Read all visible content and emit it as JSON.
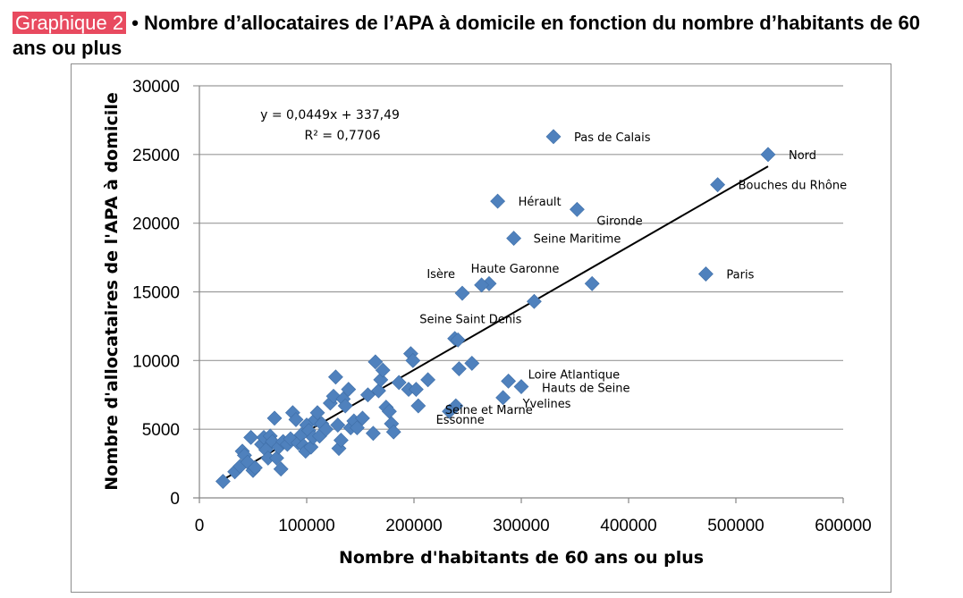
{
  "heading": {
    "tag": "Graphique 2",
    "title": " • Nombre d’allocataires de l’APA à domicile en fonction du nombre d’habitants de 60 ans ou plus"
  },
  "chart_data": {
    "type": "scatter",
    "xlabel": "Nombre d'habitants de 60 ans ou plus",
    "ylabel": "Nombre d'allocataires de l'APA à domicile",
    "xlim": [
      0,
      600000
    ],
    "ylim": [
      0,
      30000
    ],
    "x_ticks": [
      "0",
      "100000",
      "200000",
      "300000",
      "400000",
      "500000",
      "600000"
    ],
    "y_ticks": [
      "0",
      "5000",
      "10000",
      "15000",
      "20000",
      "25000",
      "30000"
    ],
    "grid": "horizontal",
    "marker_color": "#4f81bd",
    "trendline": {
      "slope": 0.0449,
      "intercept": 337.49,
      "x_range": [
        22000,
        530000
      ],
      "equation": "y = 0,0449x + 337,49",
      "r2": "R² = 0,7706"
    },
    "labeled_points": [
      {
        "name": "Nord",
        "x": 530000,
        "y": 25000
      },
      {
        "name": "Pas de Calais",
        "x": 330000,
        "y": 26300
      },
      {
        "name": "Bouches du Rhône",
        "x": 483000,
        "y": 22800
      },
      {
        "name": "Hérault",
        "x": 278000,
        "y": 21600
      },
      {
        "name": "Gironde",
        "x": 352000,
        "y": 21000
      },
      {
        "name": "Seine Maritime",
        "x": 293000,
        "y": 18900
      },
      {
        "name": "Paris",
        "x": 472000,
        "y": 16300
      },
      {
        "name": "Isère",
        "x": 245000,
        "y": 14900
      },
      {
        "name": "Haute Garonne",
        "x": 263000,
        "y": 15500
      },
      {
        "name": "Seine Saint Denis",
        "x": 312000,
        "y": 14300
      },
      {
        "name": "Loire Atlantique",
        "x": 288000,
        "y": 8500
      },
      {
        "name": "Hauts de Seine",
        "x": 300000,
        "y": 8100
      },
      {
        "name": "Yvelines",
        "x": 283000,
        "y": 7300
      },
      {
        "name": "Seine et Marne",
        "x": 239000,
        "y": 6700
      },
      {
        "name": "Essonne",
        "x": 233000,
        "y": 6300
      }
    ],
    "points": [
      {
        "x": 22000,
        "y": 1200
      },
      {
        "x": 33000,
        "y": 1900
      },
      {
        "x": 38000,
        "y": 2300
      },
      {
        "x": 40000,
        "y": 3400
      },
      {
        "x": 42000,
        "y": 3100
      },
      {
        "x": 45000,
        "y": 2600
      },
      {
        "x": 48000,
        "y": 4400
      },
      {
        "x": 50000,
        "y": 2000
      },
      {
        "x": 52000,
        "y": 2200
      },
      {
        "x": 58000,
        "y": 3900
      },
      {
        "x": 60000,
        "y": 4400
      },
      {
        "x": 62000,
        "y": 3500
      },
      {
        "x": 64000,
        "y": 2900
      },
      {
        "x": 66000,
        "y": 4500
      },
      {
        "x": 68000,
        "y": 4100
      },
      {
        "x": 70000,
        "y": 5800
      },
      {
        "x": 72000,
        "y": 2900
      },
      {
        "x": 74000,
        "y": 3700
      },
      {
        "x": 76000,
        "y": 2100
      },
      {
        "x": 78000,
        "y": 4100
      },
      {
        "x": 82000,
        "y": 3900
      },
      {
        "x": 85000,
        "y": 4300
      },
      {
        "x": 87000,
        "y": 6200
      },
      {
        "x": 90000,
        "y": 5700
      },
      {
        "x": 92000,
        "y": 4000
      },
      {
        "x": 95000,
        "y": 4600
      },
      {
        "x": 97000,
        "y": 3800
      },
      {
        "x": 99000,
        "y": 3400
      },
      {
        "x": 100000,
        "y": 5300
      },
      {
        "x": 102000,
        "y": 4900
      },
      {
        "x": 104000,
        "y": 3700
      },
      {
        "x": 106000,
        "y": 4400
      },
      {
        "x": 108000,
        "y": 5700
      },
      {
        "x": 110000,
        "y": 6200
      },
      {
        "x": 112000,
        "y": 4500
      },
      {
        "x": 114000,
        "y": 5400
      },
      {
        "x": 118000,
        "y": 5000
      },
      {
        "x": 122000,
        "y": 6900
      },
      {
        "x": 125000,
        "y": 7400
      },
      {
        "x": 127000,
        "y": 8800
      },
      {
        "x": 129000,
        "y": 5300
      },
      {
        "x": 130000,
        "y": 3600
      },
      {
        "x": 132000,
        "y": 4200
      },
      {
        "x": 134000,
        "y": 7200
      },
      {
        "x": 136000,
        "y": 6700
      },
      {
        "x": 139000,
        "y": 7900
      },
      {
        "x": 141000,
        "y": 5100
      },
      {
        "x": 144000,
        "y": 5600
      },
      {
        "x": 147000,
        "y": 5100
      },
      {
        "x": 152000,
        "y": 5800
      },
      {
        "x": 157000,
        "y": 7500
      },
      {
        "x": 162000,
        "y": 4700
      },
      {
        "x": 164000,
        "y": 9900
      },
      {
        "x": 167000,
        "y": 7800
      },
      {
        "x": 169000,
        "y": 8600
      },
      {
        "x": 171000,
        "y": 9300
      },
      {
        "x": 174000,
        "y": 6600
      },
      {
        "x": 177000,
        "y": 6300
      },
      {
        "x": 179000,
        "y": 5400
      },
      {
        "x": 181000,
        "y": 4800
      },
      {
        "x": 186000,
        "y": 8400
      },
      {
        "x": 195000,
        "y": 7900
      },
      {
        "x": 197000,
        "y": 10500
      },
      {
        "x": 199000,
        "y": 10000
      },
      {
        "x": 202000,
        "y": 7900
      },
      {
        "x": 204000,
        "y": 6700
      },
      {
        "x": 213000,
        "y": 8600
      },
      {
        "x": 238000,
        "y": 11600
      },
      {
        "x": 241000,
        "y": 11500
      },
      {
        "x": 242000,
        "y": 9400
      },
      {
        "x": 254000,
        "y": 9800
      },
      {
        "x": 270000,
        "y": 15600
      },
      {
        "x": 366000,
        "y": 15600
      }
    ]
  }
}
